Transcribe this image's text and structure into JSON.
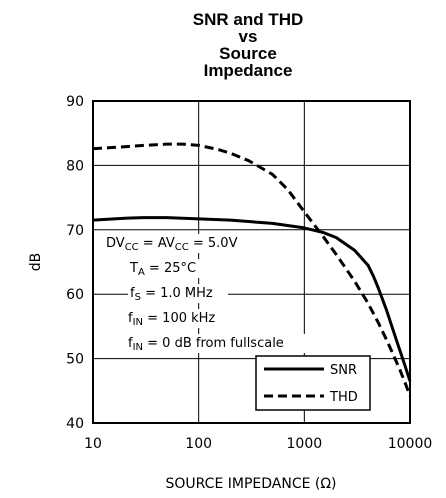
{
  "chart_data": {
    "type": "line",
    "title": [
      "SNR and THD",
      "vs",
      "Source",
      "Impedance"
    ],
    "xlabel": "SOURCE IMPEDANCE (Ω)",
    "ylabel": "dB",
    "xscale": "log",
    "xlim": [
      10,
      10000
    ],
    "ylim": [
      40,
      90
    ],
    "x_ticks": [
      10,
      100,
      1000,
      10000
    ],
    "x_tick_labels": [
      "10",
      "100",
      "1000",
      "10000"
    ],
    "y_ticks": [
      40,
      50,
      60,
      70,
      80,
      90
    ],
    "y_tick_labels": [
      "40",
      "50",
      "60",
      "70",
      "80",
      "90"
    ],
    "grid": true,
    "series": [
      {
        "name": "SNR",
        "style": "solid",
        "x": [
          10,
          20,
          30,
          50,
          100,
          200,
          500,
          1000,
          1500,
          2000,
          3000,
          4000,
          4500,
          5000,
          6000,
          7000,
          8000,
          9000,
          10000
        ],
        "y": [
          71.5,
          71.8,
          71.9,
          71.9,
          71.7,
          71.5,
          71.0,
          70.3,
          69.6,
          68.8,
          66.8,
          64.5,
          62.8,
          61.0,
          57.5,
          54.2,
          51.3,
          48.8,
          46.5
        ]
      },
      {
        "name": "THD",
        "style": "dashed",
        "x": [
          10,
          20,
          30,
          50,
          70,
          100,
          150,
          200,
          300,
          500,
          700,
          1000,
          1500,
          2000,
          3000,
          4000,
          5000,
          6000,
          7000,
          8000,
          9000,
          10000
        ],
        "y": [
          82.6,
          82.9,
          83.1,
          83.3,
          83.3,
          83.1,
          82.5,
          81.9,
          80.7,
          78.6,
          76.2,
          72.8,
          69.0,
          66.2,
          62.0,
          58.6,
          55.6,
          52.9,
          50.5,
          48.3,
          46.2,
          44.2
        ]
      }
    ],
    "conditions": [
      {
        "parts": [
          [
            "DV",
            ""
          ],
          [
            "CC",
            "sub"
          ],
          [
            " = AV",
            ""
          ],
          [
            "CC",
            "sub"
          ],
          [
            " = 5.0V",
            ""
          ]
        ]
      },
      {
        "parts": [
          [
            "T",
            ""
          ],
          [
            "A",
            "sub"
          ],
          [
            " = 25°C",
            ""
          ]
        ]
      },
      {
        "parts": [
          [
            "f",
            ""
          ],
          [
            "S",
            "sub"
          ],
          [
            " = 1.0 MHz",
            ""
          ]
        ]
      },
      {
        "parts": [
          [
            "f",
            ""
          ],
          [
            "IN",
            "sub"
          ],
          [
            " = 100 kHz",
            ""
          ]
        ]
      },
      {
        "parts": [
          [
            "f",
            ""
          ],
          [
            "IN",
            "sub"
          ],
          [
            " = 0 dB from fullscale",
            ""
          ]
        ]
      }
    ],
    "legend": {
      "position": "bottom-right",
      "entries": [
        "SNR",
        "THD"
      ]
    }
  }
}
